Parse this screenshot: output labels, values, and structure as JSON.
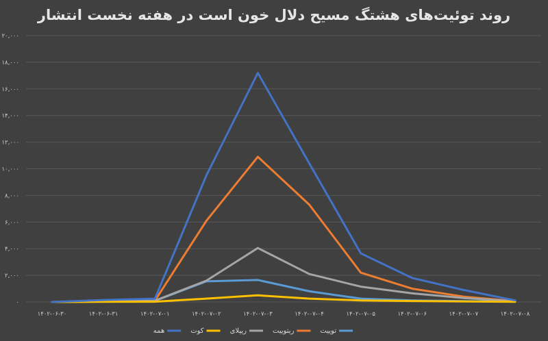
{
  "chart_data": {
    "type": "line",
    "title": "روند توئیت‌های هشتگ مسیح دلال خون است در هفته نخست انتشار",
    "xlabel": "",
    "ylabel": "",
    "categories": [
      "۱۴۰۲-۰۶-۳۰",
      "۱۴۰۲-۰۶-۳۱",
      "۱۴۰۲-۰۷-۰۱",
      "۱۴۰۲-۰۷-۰۲",
      "۱۴۰۲-۰۷-۰۳",
      "۱۴۰۲-۰۷-۰۴",
      "۱۴۰۲-۰۷-۰۵",
      "۱۴۰۲-۰۷-۰۶",
      "۱۴۰۲-۰۷-۰۷",
      "۱۴۰۲-۰۷-۰۸"
    ],
    "ylim": [
      0,
      20000
    ],
    "yticks": [
      0,
      2000,
      4000,
      6000,
      8000,
      10000,
      12000,
      14000,
      16000,
      18000,
      20000
    ],
    "ytick_labels": [
      "۰",
      "۲,۰۰۰",
      "۴,۰۰۰",
      "۶,۰۰۰",
      "۸,۰۰۰",
      "۱۰,۰۰۰",
      "۱۲,۰۰۰",
      "۱۴,۰۰۰",
      "۱۶,۰۰۰",
      "۱۸,۰۰۰",
      "۲۰,۰۰۰"
    ],
    "grid": true,
    "legend_position": "bottom",
    "series": [
      {
        "name": "توییت",
        "color": "#5b9bd5",
        "values": [
          0,
          30,
          80,
          1550,
          1650,
          800,
          250,
          120,
          60,
          20
        ]
      },
      {
        "name": "ریتوییت",
        "color": "#ed7d31",
        "values": [
          0,
          60,
          100,
          6100,
          10900,
          7300,
          2200,
          1000,
          400,
          60
        ]
      },
      {
        "name": "ریپلای",
        "color": "#a5a5a5",
        "values": [
          0,
          50,
          100,
          1600,
          4050,
          2100,
          1150,
          650,
          300,
          50
        ]
      },
      {
        "name": "کوت",
        "color": "#ffc000",
        "values": [
          0,
          10,
          20,
          250,
          500,
          250,
          120,
          70,
          40,
          10
        ]
      },
      {
        "name": "همه",
        "color": "#4472c4",
        "values": [
          0,
          150,
          250,
          9500,
          17200,
          10400,
          3650,
          1800,
          900,
          120
        ]
      }
    ]
  }
}
